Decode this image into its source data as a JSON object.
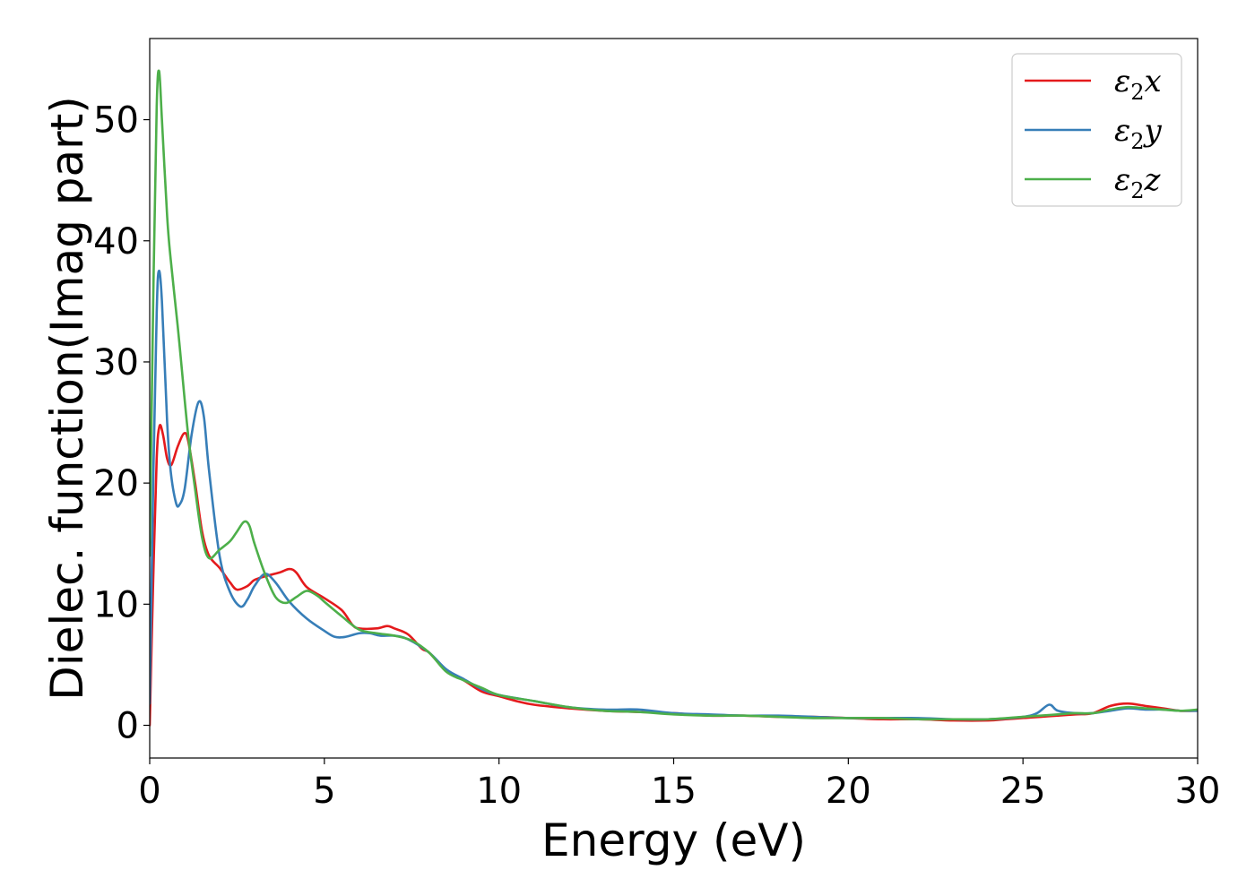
{
  "chart_data": {
    "type": "line",
    "xlabel": "Energy (eV)",
    "ylabel": "Dielec. function(Imag part)",
    "xlim": [
      0,
      30
    ],
    "ylim": [
      -2.7,
      56.7
    ],
    "xticks": [
      0,
      5,
      10,
      15,
      20,
      25,
      30
    ],
    "yticks": [
      0,
      10,
      20,
      30,
      40,
      50
    ],
    "grid": false,
    "legend_position": "top-right",
    "series": [
      {
        "name": "ε2x",
        "legend_base": "ε",
        "legend_sub": "2",
        "legend_var": "x",
        "color": "#e41a1c",
        "points": [
          [
            0,
            0
          ],
          [
            0.1,
            12
          ],
          [
            0.2,
            22
          ],
          [
            0.28,
            24.7
          ],
          [
            0.38,
            24
          ],
          [
            0.5,
            22
          ],
          [
            0.62,
            21.5
          ],
          [
            0.8,
            23
          ],
          [
            0.98,
            24.1
          ],
          [
            1.1,
            23.5
          ],
          [
            1.3,
            20
          ],
          [
            1.5,
            16
          ],
          [
            1.7,
            14
          ],
          [
            2.0,
            13
          ],
          [
            2.3,
            11.8
          ],
          [
            2.5,
            11.2
          ],
          [
            2.8,
            11.5
          ],
          [
            3.0,
            12.0
          ],
          [
            3.3,
            12.3
          ],
          [
            3.7,
            12.6
          ],
          [
            4.0,
            12.9
          ],
          [
            4.2,
            12.6
          ],
          [
            4.5,
            11.4
          ],
          [
            5.0,
            10.5
          ],
          [
            5.5,
            9.5
          ],
          [
            5.8,
            8.3
          ],
          [
            6.0,
            8.0
          ],
          [
            6.5,
            8.0
          ],
          [
            6.8,
            8.2
          ],
          [
            7.0,
            8.0
          ],
          [
            7.4,
            7.5
          ],
          [
            7.8,
            6.3
          ],
          [
            8.0,
            6.0
          ],
          [
            8.5,
            4.5
          ],
          [
            9.0,
            3.7
          ],
          [
            9.5,
            2.8
          ],
          [
            10,
            2.4
          ],
          [
            10.5,
            2.0
          ],
          [
            11,
            1.7
          ],
          [
            12,
            1.4
          ],
          [
            13,
            1.2
          ],
          [
            14,
            1.1
          ],
          [
            15,
            1.0
          ],
          [
            16,
            0.8
          ],
          [
            17,
            0.8
          ],
          [
            18,
            0.7
          ],
          [
            19,
            0.7
          ],
          [
            20,
            0.6
          ],
          [
            21,
            0.5
          ],
          [
            22,
            0.5
          ],
          [
            23,
            0.4
          ],
          [
            24,
            0.4
          ],
          [
            24.5,
            0.5
          ],
          [
            25,
            0.6
          ],
          [
            25.5,
            0.7
          ],
          [
            26,
            0.8
          ],
          [
            26.5,
            0.9
          ],
          [
            27,
            1.0
          ],
          [
            27.5,
            1.6
          ],
          [
            28,
            1.8
          ],
          [
            28.5,
            1.6
          ],
          [
            29,
            1.4
          ],
          [
            29.5,
            1.2
          ],
          [
            30,
            1.2
          ]
        ]
      },
      {
        "name": "ε2y",
        "legend_base": "ε",
        "legend_sub": "2",
        "legend_var": "y",
        "color": "#377eb8",
        "points": [
          [
            0,
            1.8
          ],
          [
            0.1,
            20
          ],
          [
            0.2,
            34
          ],
          [
            0.26,
            37.5
          ],
          [
            0.35,
            35
          ],
          [
            0.5,
            25
          ],
          [
            0.6,
            21
          ],
          [
            0.75,
            18.4
          ],
          [
            0.85,
            18.2
          ],
          [
            1.0,
            19.5
          ],
          [
            1.2,
            24
          ],
          [
            1.4,
            26.7
          ],
          [
            1.55,
            25.5
          ],
          [
            1.7,
            21
          ],
          [
            2.0,
            14
          ],
          [
            2.3,
            11
          ],
          [
            2.6,
            9.8
          ],
          [
            2.8,
            10.4
          ],
          [
            3.0,
            11.5
          ],
          [
            3.3,
            12.5
          ],
          [
            3.6,
            11.8
          ],
          [
            4.0,
            10.2
          ],
          [
            4.5,
            8.8
          ],
          [
            5.0,
            7.8
          ],
          [
            5.3,
            7.3
          ],
          [
            5.6,
            7.3
          ],
          [
            6.0,
            7.6
          ],
          [
            6.3,
            7.6
          ],
          [
            6.6,
            7.4
          ],
          [
            7.0,
            7.4
          ],
          [
            7.4,
            7.1
          ],
          [
            8.0,
            6.0
          ],
          [
            8.5,
            4.6
          ],
          [
            9.0,
            3.8
          ],
          [
            9.5,
            3.0
          ],
          [
            10,
            2.5
          ],
          [
            11,
            2.0
          ],
          [
            12,
            1.5
          ],
          [
            13,
            1.3
          ],
          [
            14,
            1.3
          ],
          [
            15,
            1.0
          ],
          [
            16,
            0.9
          ],
          [
            17,
            0.8
          ],
          [
            18,
            0.8
          ],
          [
            19,
            0.7
          ],
          [
            20,
            0.6
          ],
          [
            21,
            0.6
          ],
          [
            22,
            0.6
          ],
          [
            23,
            0.5
          ],
          [
            24,
            0.5
          ],
          [
            25,
            0.7
          ],
          [
            25.4,
            1.0
          ],
          [
            25.75,
            1.7
          ],
          [
            26.0,
            1.2
          ],
          [
            26.5,
            1.0
          ],
          [
            27,
            1.0
          ],
          [
            27.5,
            1.2
          ],
          [
            28,
            1.4
          ],
          [
            28.5,
            1.3
          ],
          [
            29,
            1.3
          ],
          [
            29.5,
            1.2
          ],
          [
            30,
            1.2
          ]
        ]
      },
      {
        "name": "ε2z",
        "legend_base": "ε",
        "legend_sub": "2",
        "legend_var": "z",
        "color": "#4daf4a",
        "points": [
          [
            0,
            14
          ],
          [
            0.1,
            35
          ],
          [
            0.2,
            51
          ],
          [
            0.27,
            54
          ],
          [
            0.35,
            50
          ],
          [
            0.5,
            42
          ],
          [
            0.6,
            38.5
          ],
          [
            0.8,
            33
          ],
          [
            0.9,
            30
          ],
          [
            1.1,
            24
          ],
          [
            1.3,
            19.5
          ],
          [
            1.5,
            15.5
          ],
          [
            1.7,
            13.8
          ],
          [
            2.0,
            14.5
          ],
          [
            2.3,
            15.2
          ],
          [
            2.5,
            16
          ],
          [
            2.7,
            16.8
          ],
          [
            2.85,
            16.5
          ],
          [
            3.0,
            15
          ],
          [
            3.3,
            12.5
          ],
          [
            3.6,
            10.6
          ],
          [
            3.9,
            10.1
          ],
          [
            4.2,
            10.6
          ],
          [
            4.5,
            11.1
          ],
          [
            4.8,
            10.7
          ],
          [
            5.0,
            10.2
          ],
          [
            5.5,
            9.0
          ],
          [
            6.0,
            7.9
          ],
          [
            6.5,
            7.6
          ],
          [
            7.0,
            7.4
          ],
          [
            7.5,
            7.0
          ],
          [
            8.0,
            6.0
          ],
          [
            8.5,
            4.4
          ],
          [
            9.0,
            3.7
          ],
          [
            9.5,
            3.1
          ],
          [
            10,
            2.5
          ],
          [
            11,
            2.0
          ],
          [
            12,
            1.5
          ],
          [
            13,
            1.2
          ],
          [
            14,
            1.1
          ],
          [
            15,
            0.9
          ],
          [
            16,
            0.8
          ],
          [
            17,
            0.8
          ],
          [
            18,
            0.7
          ],
          [
            19,
            0.6
          ],
          [
            20,
            0.6
          ],
          [
            21,
            0.6
          ],
          [
            22,
            0.5
          ],
          [
            23,
            0.5
          ],
          [
            24,
            0.5
          ],
          [
            25,
            0.7
          ],
          [
            25.5,
            0.8
          ],
          [
            26,
            0.9
          ],
          [
            26.5,
            1.0
          ],
          [
            27,
            1.0
          ],
          [
            27.5,
            1.3
          ],
          [
            28,
            1.5
          ],
          [
            28.5,
            1.4
          ],
          [
            29,
            1.3
          ],
          [
            29.5,
            1.2
          ],
          [
            30,
            1.3
          ]
        ]
      }
    ]
  }
}
